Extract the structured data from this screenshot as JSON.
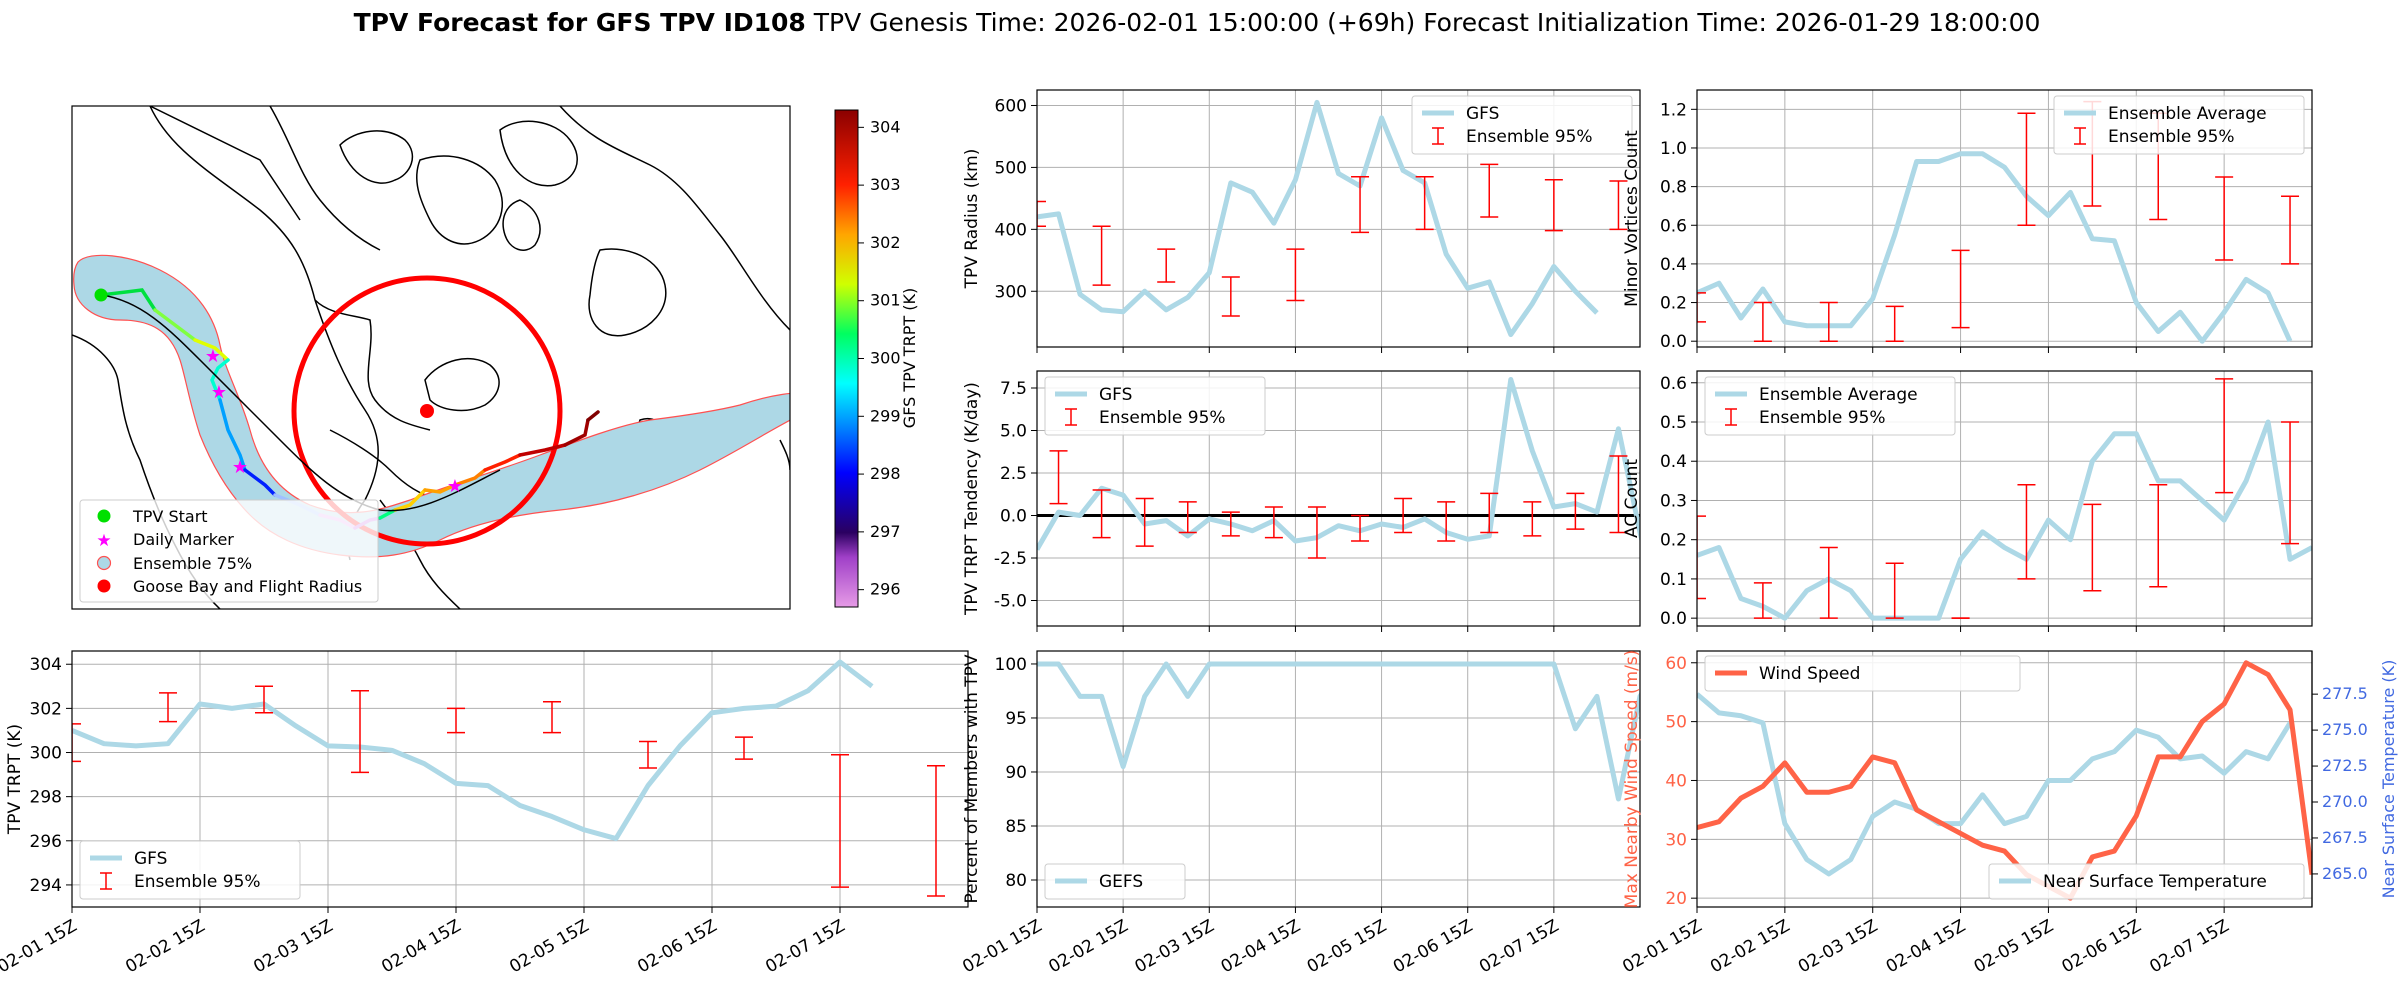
{
  "title": {
    "bold": "TPV Forecast for GFS TPV ID108",
    "genesis": "TPV Genesis Time: 2026-02-01 15:00:00 (+69h)",
    "init": "Forecast Initialization Time: 2026-01-29 18:00:00"
  },
  "map": {
    "colorbar_label": "GFS TPV TRPT (K)",
    "colorbar_ticks": [
      296,
      297,
      298,
      299,
      300,
      301,
      302,
      303,
      304
    ],
    "colorbar_range": [
      295.7,
      304.3
    ],
    "legend": [
      "TPV Start",
      "Daily Marker",
      "Ensemble 75%",
      "Goose Bay and Flight Radius"
    ],
    "colors": {
      "start": "#00e000",
      "daily": "#ff00ff",
      "ensemble_fill": "#add8e6",
      "ensemble_edge": "#ff4040",
      "goose": "#ff0000"
    }
  },
  "chart_data": [
    {
      "id": "trpt",
      "type": "line",
      "ylabel": "TPV TRPT (K)",
      "ylim": [
        293,
        304.6
      ],
      "yticks": [
        294,
        296,
        298,
        300,
        302,
        304
      ],
      "xlim": [
        0,
        42
      ],
      "xticks": [
        0,
        6,
        12,
        18,
        24,
        30,
        36
      ],
      "xticklabels": [
        "02-01 15Z",
        "02-02 15Z",
        "02-03 15Z",
        "02-04 15Z",
        "02-05 15Z",
        "02-06 15Z",
        "02-07 15Z"
      ],
      "legend": [
        "GFS",
        "Ensemble 95%"
      ],
      "legend_loc": "lower left",
      "series": [
        {
          "name": "GFS",
          "values": [
            301.0,
            300.4,
            300.3,
            300.4,
            302.2,
            302.0,
            302.2,
            301.2,
            300.3,
            300.25,
            300.1,
            299.5,
            298.6,
            298.5,
            297.6,
            297.1,
            296.5,
            296.1,
            298.5,
            300.3,
            301.8,
            302.0,
            302.1,
            302.8,
            304.1,
            303.0
          ]
        }
      ],
      "errorbars": [
        [
          0,
          299.6,
          301.3
        ],
        [
          3,
          301.4,
          302.7
        ],
        [
          6,
          301.8,
          303.0
        ],
        [
          9,
          299.1,
          302.8
        ],
        [
          12,
          300.9,
          302.0
        ],
        [
          15,
          300.9,
          302.3
        ],
        [
          18,
          299.3,
          300.5
        ],
        [
          21,
          299.7,
          300.7
        ],
        [
          24,
          293.9,
          299.9
        ],
        [
          27,
          293.5,
          299.4
        ],
        [
          30,
          294.5,
          302.5
        ],
        [
          33,
          293.9,
          299.0
        ],
        [
          36,
          293.5,
          299.5
        ],
        [
          39,
          297.0,
          301.2
        ]
      ]
    },
    {
      "id": "radius",
      "type": "line",
      "ylabel": "TPV Radius (km)",
      "ylim": [
        210,
        625
      ],
      "yticks": [
        300,
        400,
        500,
        600
      ],
      "xlim": [
        0,
        42
      ],
      "legend": [
        "GFS",
        "Ensemble 95%"
      ],
      "legend_loc": "upper right",
      "series": [
        {
          "name": "GFS",
          "values": [
            420,
            425,
            295,
            270,
            267,
            300,
            270,
            290,
            330,
            475,
            460,
            410,
            480,
            605,
            490,
            470,
            580,
            495,
            475,
            360,
            305,
            315,
            230,
            280,
            340,
            300,
            265
          ]
        }
      ],
      "errorbars": [
        [
          0,
          405,
          445
        ],
        [
          3,
          310,
          405
        ],
        [
          6,
          315,
          368
        ],
        [
          9,
          260,
          323
        ],
        [
          12,
          285,
          368
        ],
        [
          15,
          395,
          485
        ],
        [
          18,
          400,
          485
        ],
        [
          21,
          420,
          505
        ],
        [
          24,
          398,
          480
        ],
        [
          27,
          400,
          478
        ],
        [
          30,
          335,
          408
        ],
        [
          33,
          325,
          438
        ],
        [
          36,
          320,
          432
        ],
        [
          39,
          290,
          398
        ]
      ]
    },
    {
      "id": "minor",
      "type": "line",
      "ylabel": "Minor Vortices Count",
      "ylim": [
        -0.03,
        1.3
      ],
      "yticks": [
        0.0,
        0.2,
        0.4,
        0.6,
        0.8,
        1.0,
        1.2
      ],
      "xlim": [
        0,
        42
      ],
      "legend": [
        "Ensemble Average",
        "Ensemble 95%"
      ],
      "legend_loc": "upper right",
      "series": [
        {
          "name": "Ensemble Average",
          "values": [
            0.25,
            0.3,
            0.12,
            0.27,
            0.1,
            0.08,
            0.08,
            0.08,
            0.22,
            0.55,
            0.93,
            0.93,
            0.97,
            0.97,
            0.9,
            0.75,
            0.65,
            0.77,
            0.53,
            0.52,
            0.2,
            0.05,
            0.15,
            0.0,
            0.15,
            0.32,
            0.25,
            0.0
          ]
        }
      ],
      "errorbars": [
        [
          0,
          0.1,
          0.25
        ],
        [
          3,
          0.0,
          0.2
        ],
        [
          6,
          0.0,
          0.2
        ],
        [
          9,
          0.0,
          0.18
        ],
        [
          12,
          0.07,
          0.47
        ],
        [
          15,
          0.6,
          1.18
        ],
        [
          18,
          0.7,
          1.24
        ],
        [
          21,
          0.63,
          1.18
        ],
        [
          24,
          0.42,
          0.85
        ],
        [
          27,
          0.4,
          0.75
        ],
        [
          30,
          0.05,
          0.37
        ],
        [
          33,
          0.0,
          0.33
        ],
        [
          36,
          0.0,
          0.3
        ],
        [
          39,
          0.02,
          0.5
        ]
      ]
    },
    {
      "id": "tendency",
      "type": "line",
      "ylabel": "TPV TRPT Tendency (K/day)",
      "ylim": [
        -6.5,
        8.5
      ],
      "yticks": [
        -5.0,
        -2.5,
        0.0,
        2.5,
        5.0,
        7.5
      ],
      "xlim": [
        0,
        42
      ],
      "legend": [
        "GFS",
        "Ensemble 95%"
      ],
      "legend_loc": "upper left",
      "series": [
        {
          "name": "GFS",
          "values": [
            -2.0,
            0.2,
            0.0,
            1.6,
            1.2,
            -0.5,
            -0.3,
            -1.2,
            -0.2,
            -0.5,
            -0.9,
            -0.3,
            -1.5,
            -1.3,
            -0.6,
            -0.9,
            -0.5,
            -0.7,
            -0.2,
            -1.0,
            -1.4,
            -1.2,
            8.0,
            3.8,
            0.5,
            0.7,
            0.2,
            5.1,
            -1.0,
            -6.0
          ]
        }
      ],
      "errorbars": [
        [
          1,
          0.7,
          3.8
        ],
        [
          3,
          -1.3,
          1.5
        ],
        [
          5,
          -1.8,
          1.0
        ],
        [
          7,
          -1.0,
          0.8
        ],
        [
          9,
          -1.2,
          0.2
        ],
        [
          11,
          -1.3,
          0.5
        ],
        [
          13,
          -2.5,
          0.5
        ],
        [
          15,
          -1.5,
          0.0
        ],
        [
          17,
          -1.0,
          1.0
        ],
        [
          19,
          -1.5,
          0.8
        ],
        [
          21,
          -1.0,
          1.3
        ],
        [
          23,
          -1.2,
          0.8
        ],
        [
          25,
          -0.8,
          1.3
        ],
        [
          27,
          -1.0,
          3.5
        ],
        [
          29,
          -1.3,
          1.5
        ],
        [
          31,
          -0.5,
          1.5
        ],
        [
          33,
          -1.5,
          1.3
        ],
        [
          35,
          -2.5,
          1.0
        ],
        [
          37,
          -1.5,
          6.8
        ],
        [
          39,
          -2.0,
          1.5
        ]
      ]
    },
    {
      "id": "ac",
      "type": "line",
      "ylabel": "AC Count",
      "ylim": [
        -0.02,
        0.63
      ],
      "yticks": [
        0.0,
        0.1,
        0.2,
        0.3,
        0.4,
        0.5,
        0.6
      ],
      "xlim": [
        0,
        42
      ],
      "legend": [
        "Ensemble Average",
        "Ensemble 95%"
      ],
      "legend_loc": "upper left",
      "series": [
        {
          "name": "Ensemble Average",
          "values": [
            0.16,
            0.18,
            0.05,
            0.03,
            0.0,
            0.07,
            0.1,
            0.07,
            0.0,
            0.0,
            0.0,
            0.0,
            0.15,
            0.22,
            0.18,
            0.15,
            0.25,
            0.2,
            0.4,
            0.47,
            0.47,
            0.35,
            0.35,
            0.3,
            0.25,
            0.35,
            0.5,
            0.15,
            0.18
          ]
        }
      ],
      "errorbars": [
        [
          0,
          0.05,
          0.26
        ],
        [
          3,
          0.0,
          0.09
        ],
        [
          6,
          0.0,
          0.18
        ],
        [
          9,
          0.0,
          0.14
        ],
        [
          12,
          0.0,
          0.0
        ],
        [
          15,
          0.1,
          0.34
        ],
        [
          18,
          0.07,
          0.29
        ],
        [
          21,
          0.08,
          0.34
        ],
        [
          24,
          0.32,
          0.61
        ],
        [
          27,
          0.19,
          0.5
        ],
        [
          30,
          0.19,
          0.48
        ],
        [
          33,
          0.22,
          0.49
        ],
        [
          36,
          0.06,
          0.29
        ]
      ]
    },
    {
      "id": "members",
      "type": "line",
      "ylabel": "Percent of Members with TPV",
      "ylim": [
        77.5,
        101.2
      ],
      "yticks": [
        80,
        85,
        90,
        95,
        100
      ],
      "xlim": [
        0,
        42
      ],
      "legend": [
        "GEFS"
      ],
      "legend_loc": "lower left",
      "series": [
        {
          "name": "GEFS",
          "values": [
            100,
            100,
            97,
            97,
            90.5,
            97,
            100,
            97,
            100,
            100,
            100,
            100,
            100,
            100,
            100,
            100,
            100,
            100,
            100,
            100,
            100,
            100,
            100,
            100,
            100,
            94,
            97,
            87.5,
            97,
            100,
            81,
            78
          ]
        }
      ],
      "errorbars": []
    },
    {
      "id": "wind",
      "type": "line",
      "ylabel": "Max Nearby Wind Speed (m/s)",
      "ylabel2": "Near Surface Temperature (K)",
      "ylim": [
        18.5,
        62
      ],
      "yticks": [
        20,
        30,
        40,
        50,
        60
      ],
      "y2lim": [
        262.7,
        280.5
      ],
      "y2ticks": [
        265.0,
        267.5,
        270.0,
        272.5,
        275.0,
        277.5
      ],
      "y2ticklabels": [
        "265.0",
        "267.5",
        "270.0",
        "272.5",
        "275.0",
        "277.5"
      ],
      "xlim": [
        0,
        42
      ],
      "legend": [
        "Wind Speed",
        "Near Surface Temperature"
      ],
      "series": [
        {
          "name": "Wind Speed",
          "values": [
            32,
            33,
            37,
            39,
            43,
            38,
            38,
            39,
            44,
            43,
            35,
            33,
            31,
            29,
            28,
            24,
            22,
            20,
            27,
            28,
            34,
            44,
            44,
            50,
            53,
            60,
            58,
            52,
            24
          ],
          "axis": "left"
        },
        {
          "name": "Near Surface Temperature",
          "values": [
            277.5,
            276.2,
            276.0,
            275.5,
            268.5,
            266.0,
            265.0,
            266.0,
            269.0,
            270.0,
            269.5,
            268.5,
            268.5,
            270.5,
            268.5,
            269.0,
            271.5,
            271.5,
            273.0,
            273.5,
            275.0,
            274.5,
            273.0,
            273.2,
            272.0,
            273.5,
            273.0,
            275.5
          ],
          "axis": "right"
        }
      ],
      "errorbars": []
    }
  ]
}
